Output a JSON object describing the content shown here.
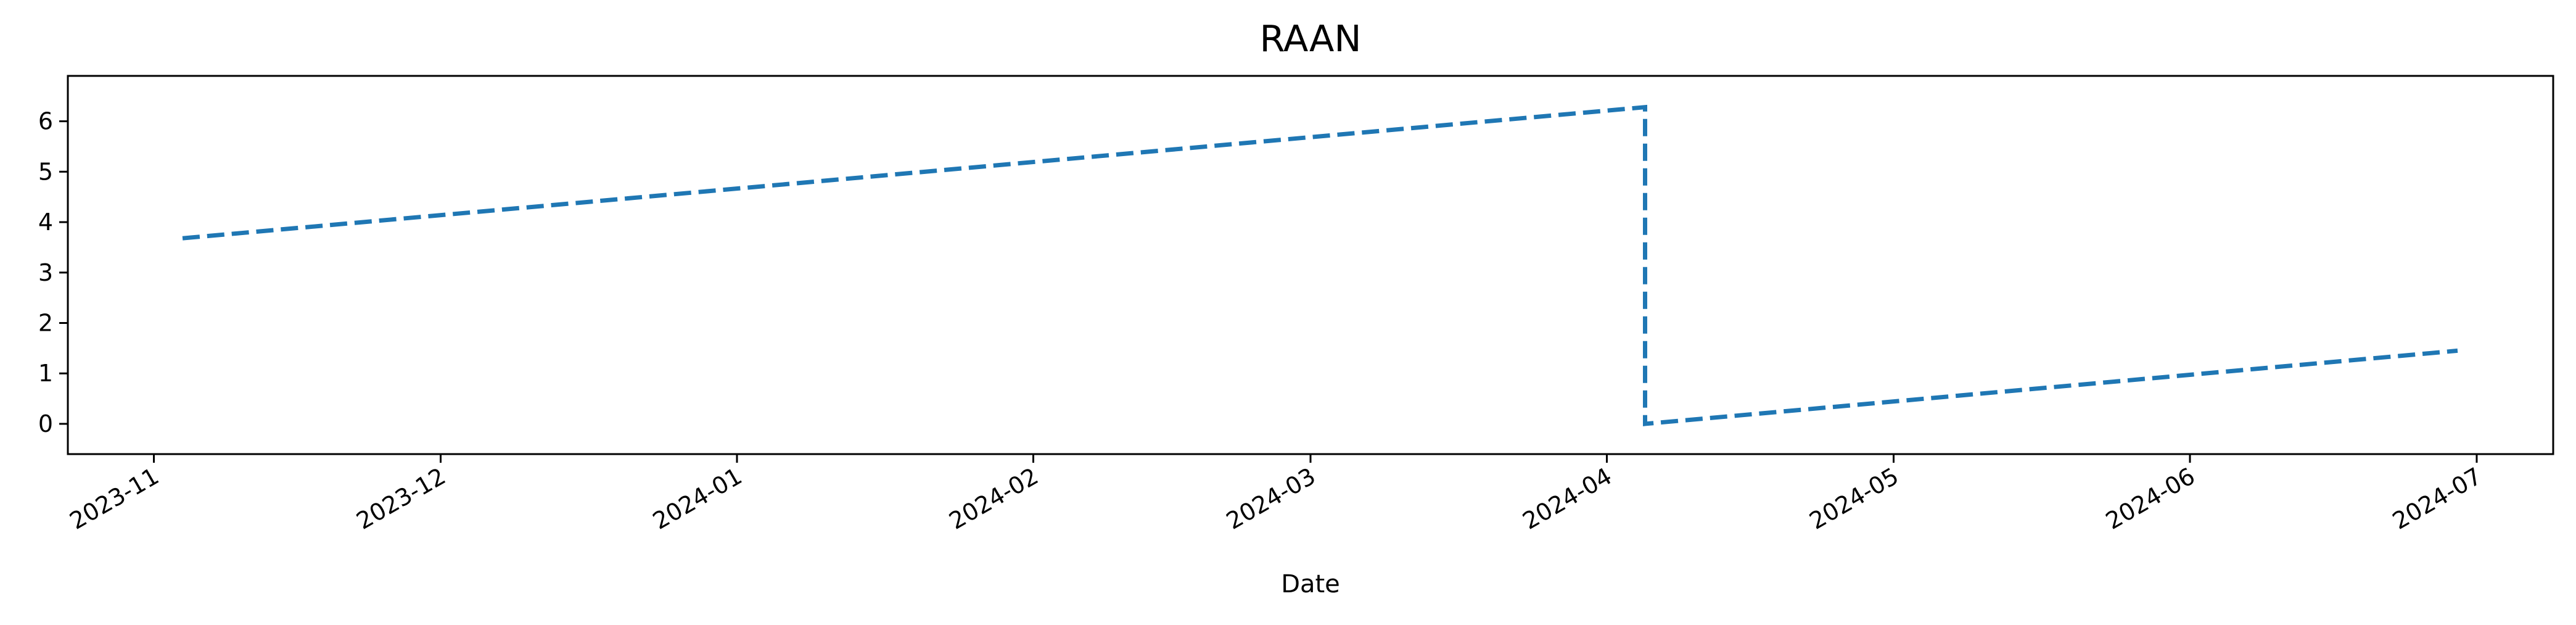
{
  "chart_data": {
    "type": "line",
    "title": "RAAN",
    "xlabel": "Date",
    "ylabel": "",
    "x_type": "date",
    "xlim": [
      "2023-10-23",
      "2024-07-09"
    ],
    "ylim": [
      -0.6,
      6.9
    ],
    "x_ticks": [
      "2023-11",
      "2023-12",
      "2024-01",
      "2024-02",
      "2024-03",
      "2024-04",
      "2024-05",
      "2024-06",
      "2024-07"
    ],
    "y_ticks": [
      0,
      1,
      2,
      3,
      4,
      5,
      6
    ],
    "grid": false,
    "series": [
      {
        "color": "#1f77b4",
        "line_style": "dashed",
        "x": [
          "2023-11-04",
          "2024-04-05",
          "2024-04-05",
          "2024-06-29"
        ],
        "y": [
          3.68,
          6.28,
          0.0,
          1.45
        ]
      }
    ]
  }
}
